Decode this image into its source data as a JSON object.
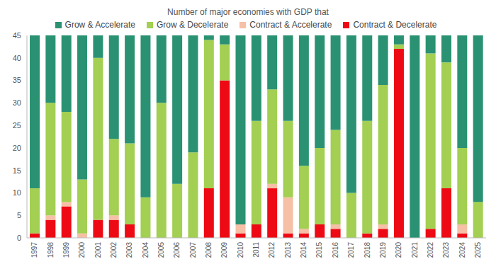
{
  "chart_data": {
    "type": "bar",
    "title": "Number of major economies with GDP that",
    "stacked": true,
    "grid": false,
    "legend": "top",
    "categories": [
      "1997",
      "1998",
      "1999",
      "2000",
      "2001",
      "2002",
      "2003",
      "2004",
      "2005",
      "2006",
      "2007",
      "2008",
      "2009",
      "2010",
      "2011",
      "2012",
      "2013",
      "2014",
      "2015",
      "2016",
      "2017",
      "2018",
      "2019",
      "2020",
      "2021",
      "2022",
      "2023",
      "2024",
      "2025"
    ],
    "ylim": [
      0,
      45
    ],
    "yticks": [
      0,
      5,
      10,
      15,
      20,
      25,
      30,
      35,
      40,
      45
    ],
    "series": [
      {
        "name": "Grow & Accelerate",
        "color": "#2a9272",
        "values": [
          34,
          15,
          17,
          32,
          5,
          23,
          24,
          36,
          15,
          33,
          26,
          1,
          2,
          42,
          19,
          12,
          19,
          29,
          25,
          21,
          35,
          19,
          11,
          2,
          45,
          4,
          6,
          25,
          37
        ]
      },
      {
        "name": "Grow & Decelerate",
        "color": "#a3cf52",
        "values": [
          10,
          25,
          20,
          12,
          36,
          17,
          18,
          9,
          30,
          12,
          19,
          33,
          8,
          0,
          23,
          21,
          17,
          14,
          17,
          21,
          10,
          25,
          31,
          1,
          0,
          39,
          28,
          17,
          8
        ]
      },
      {
        "name": "Contract & Accelerate",
        "color": "#f5c0a6",
        "values": [
          0,
          1,
          1,
          1,
          0,
          1,
          0,
          0,
          0,
          0,
          0,
          0,
          0,
          2,
          0,
          1,
          8,
          1,
          0,
          1,
          0,
          0,
          1,
          0,
          0,
          0,
          0,
          2,
          0
        ]
      },
      {
        "name": "Contract & Decelerate",
        "color": "#ee0a14",
        "values": [
          1,
          4,
          7,
          0,
          4,
          4,
          3,
          0,
          0,
          0,
          0,
          11,
          35,
          1,
          3,
          11,
          1,
          1,
          3,
          2,
          0,
          1,
          2,
          42,
          0,
          2,
          11,
          1,
          0
        ]
      }
    ]
  }
}
